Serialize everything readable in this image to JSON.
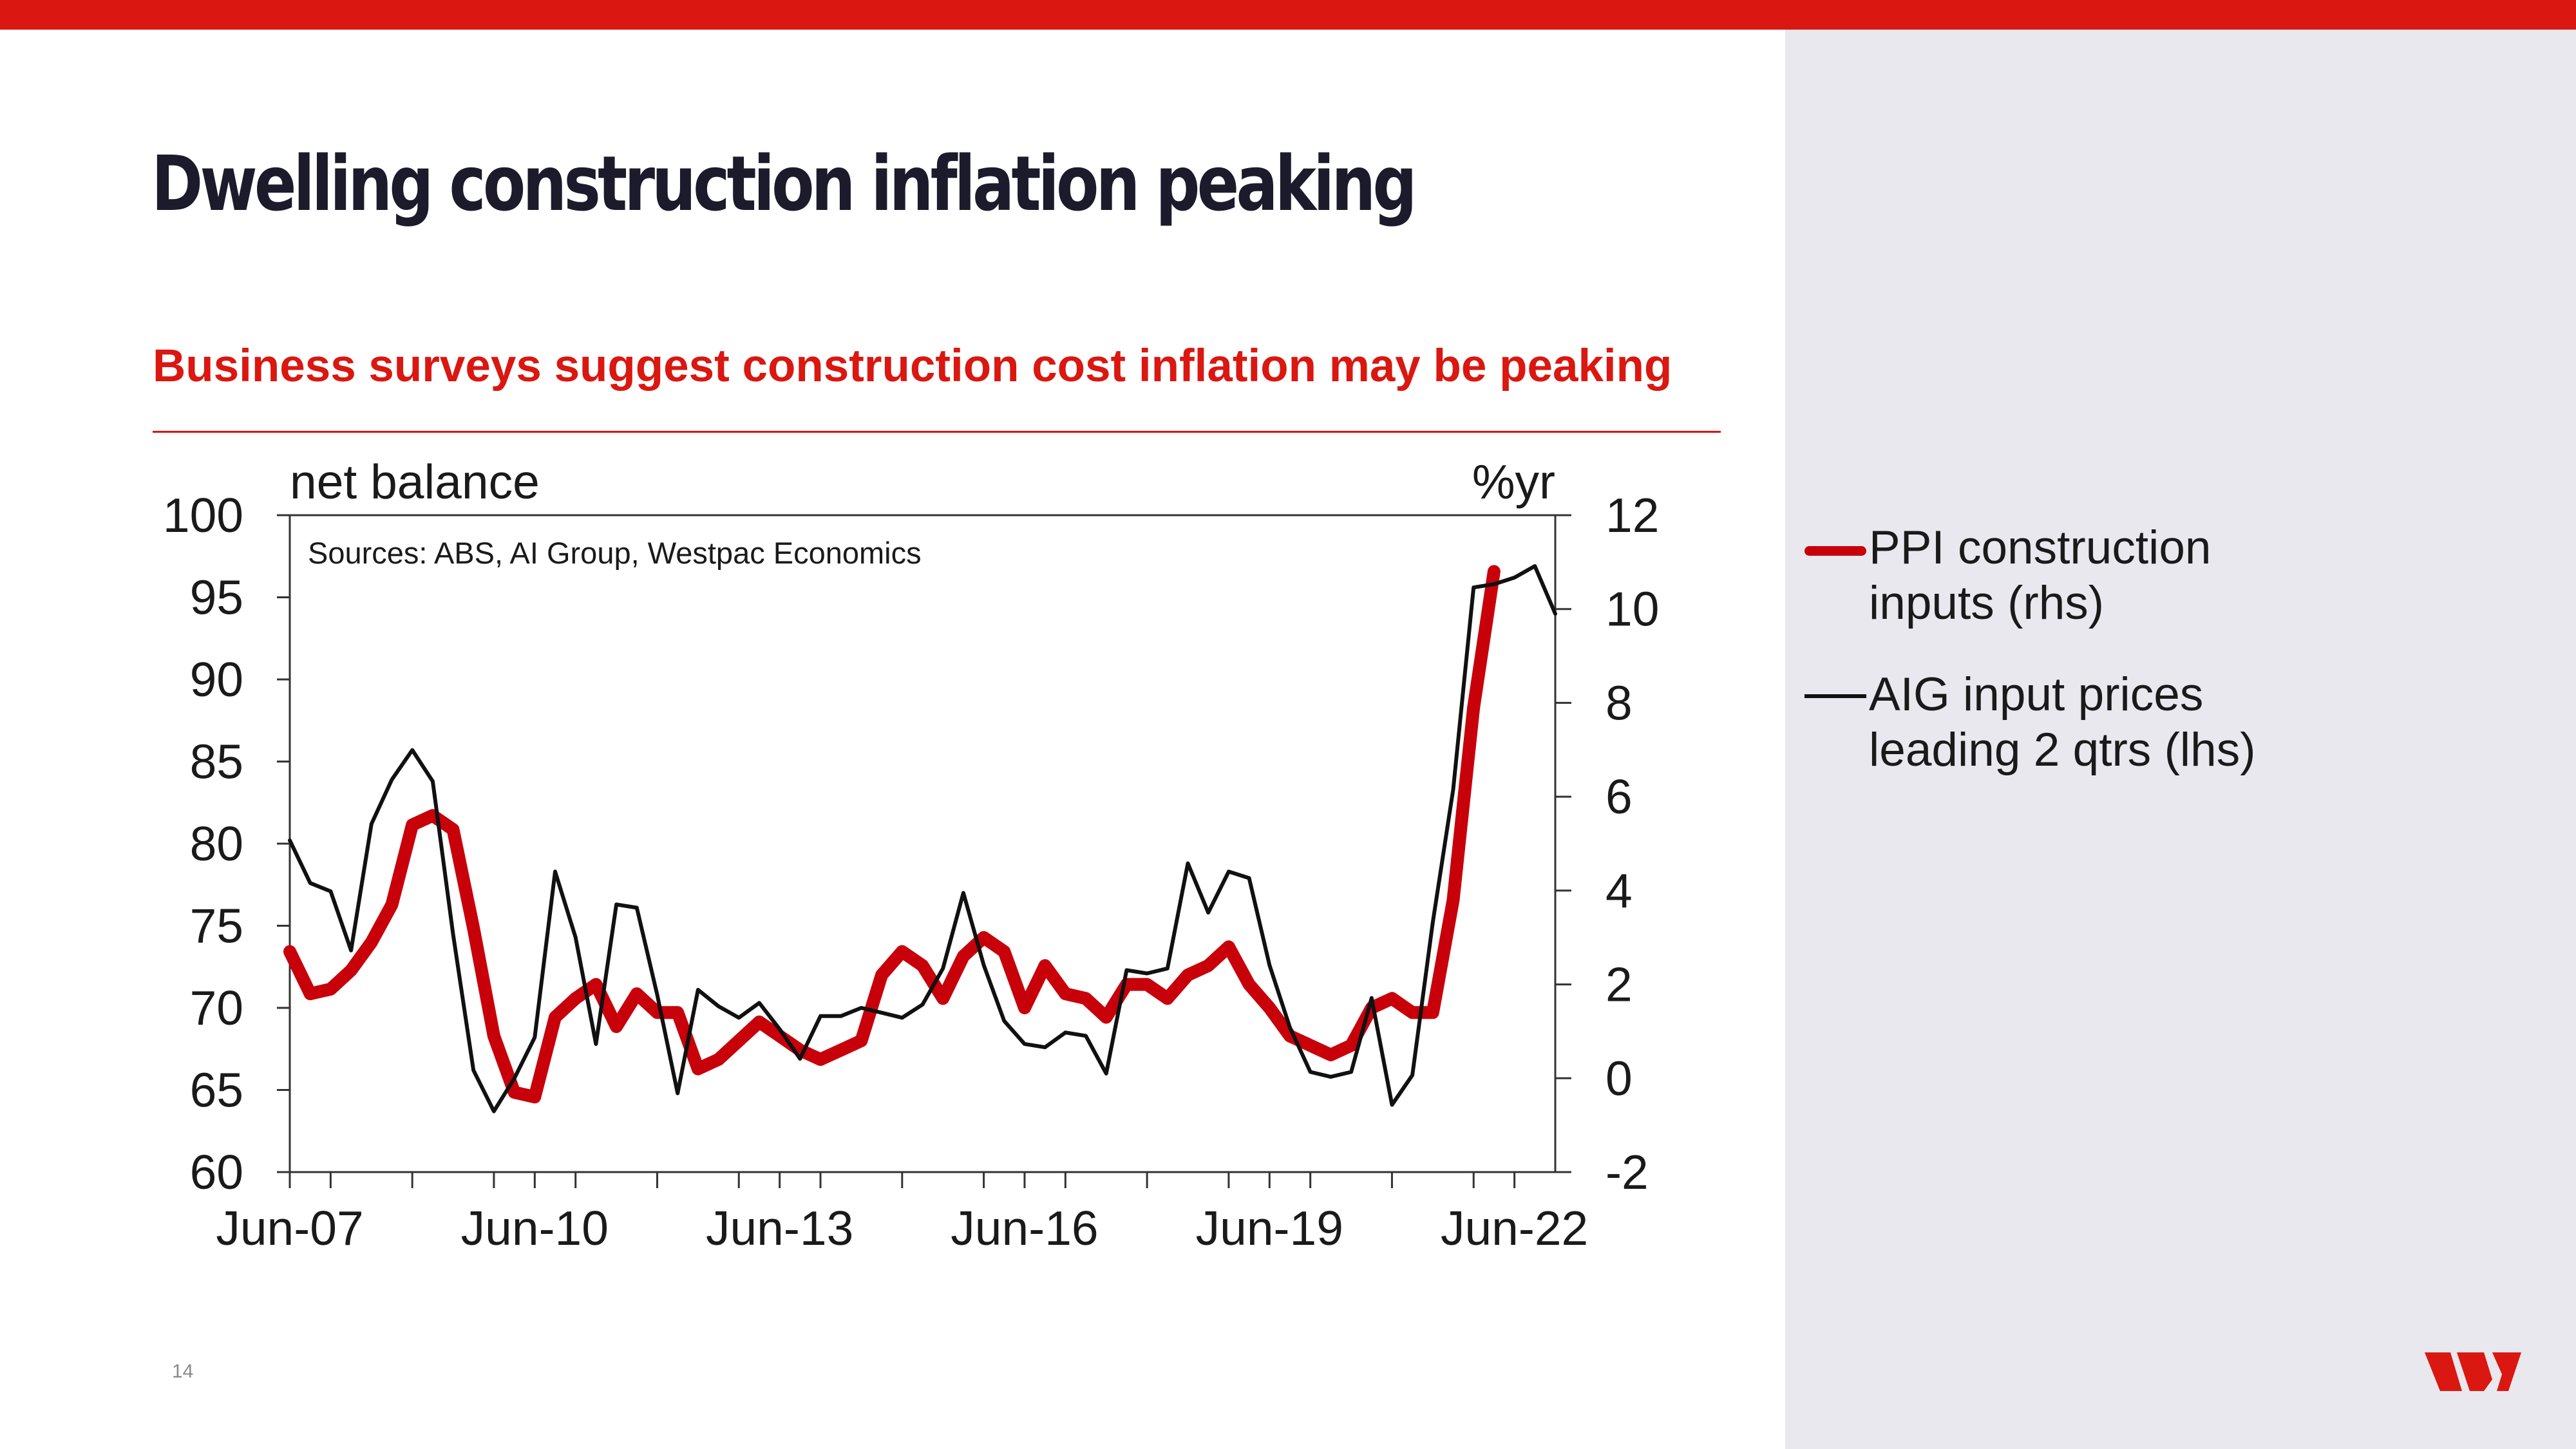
{
  "slide": {
    "title": "Dwelling construction inflation peaking",
    "subtitle": "Business surveys suggest construction cost inflation may be peaking",
    "page_number": "14"
  },
  "colors": {
    "accent_red": "#da1710",
    "title_dark": "#1b1b2b",
    "side_panel": "#e8e8ee",
    "series_red": "#c8000a",
    "series_black": "#111111"
  },
  "logo": {
    "icon": "westpac-w-logo"
  },
  "chart_data": {
    "type": "line",
    "source_note": "Sources: ABS, AI Group, Westpac Economics",
    "left_axis": {
      "unit_label": "net balance",
      "range": [
        60,
        100
      ],
      "ticks": [
        60,
        65,
        70,
        75,
        80,
        85,
        90,
        95,
        100
      ],
      "tick_labels": [
        "60",
        "65",
        "70",
        "75",
        "80",
        "85",
        "90",
        "95",
        "100"
      ]
    },
    "right_axis": {
      "unit_label": "%yr",
      "range": [
        -2,
        12
      ],
      "ticks": [
        -2,
        0,
        2,
        4,
        6,
        8,
        10,
        12
      ],
      "tick_labels": [
        "-2",
        "0",
        "2",
        "4",
        "6",
        "8",
        "10",
        "12"
      ]
    },
    "x_axis": {
      "range": [
        "Jun-07",
        "Dec-22"
      ],
      "tick_labels": [
        "Jun-07",
        "Jun-10",
        "Jun-13",
        "Jun-16",
        "Jun-19",
        "Jun-22"
      ]
    },
    "grid": false,
    "legend_position": "right",
    "series": [
      {
        "name": "PPI construction inputs (rhs)",
        "axis": "right",
        "color": "#c8000a",
        "points": [
          [
            "Jun-07",
            2.7
          ],
          [
            "Sep-07",
            1.8
          ],
          [
            "Dec-07",
            1.9
          ],
          [
            "Mar-08",
            2.3
          ],
          [
            "Jun-08",
            2.9
          ],
          [
            "Sep-08",
            3.7
          ],
          [
            "Dec-08",
            5.4
          ],
          [
            "Mar-09",
            5.6
          ],
          [
            "Jun-09",
            5.3
          ],
          [
            "Sep-09",
            3.2
          ],
          [
            "Dec-09",
            0.9
          ],
          [
            "Mar-10",
            -0.3
          ],
          [
            "Jun-10",
            -0.4
          ],
          [
            "Sep-10",
            1.3
          ],
          [
            "Dec-10",
            1.7
          ],
          [
            "Mar-11",
            2.0
          ],
          [
            "Jun-11",
            1.1
          ],
          [
            "Sep-11",
            1.8
          ],
          [
            "Dec-11",
            1.4
          ],
          [
            "Mar-12",
            1.4
          ],
          [
            "Jun-12",
            0.2
          ],
          [
            "Sep-12",
            0.4
          ],
          [
            "Dec-12",
            0.8
          ],
          [
            "Mar-13",
            1.2
          ],
          [
            "Jun-13",
            0.9
          ],
          [
            "Sep-13",
            0.6
          ],
          [
            "Dec-13",
            0.4
          ],
          [
            "Mar-14",
            0.6
          ],
          [
            "Jun-14",
            0.8
          ],
          [
            "Sep-14",
            2.2
          ],
          [
            "Dec-14",
            2.7
          ],
          [
            "Mar-15",
            2.4
          ],
          [
            "Jun-15",
            1.7
          ],
          [
            "Sep-15",
            2.6
          ],
          [
            "Dec-15",
            3.0
          ],
          [
            "Mar-16",
            2.7
          ],
          [
            "Jun-16",
            1.5
          ],
          [
            "Sep-16",
            2.4
          ],
          [
            "Dec-16",
            1.8
          ],
          [
            "Mar-17",
            1.7
          ],
          [
            "Jun-17",
            1.3
          ],
          [
            "Sep-17",
            2.0
          ],
          [
            "Dec-17",
            2.0
          ],
          [
            "Mar-18",
            1.7
          ],
          [
            "Jun-18",
            2.2
          ],
          [
            "Sep-18",
            2.4
          ],
          [
            "Dec-18",
            2.8
          ],
          [
            "Mar-19",
            2.0
          ],
          [
            "Jun-19",
            1.5
          ],
          [
            "Sep-19",
            0.9
          ],
          [
            "Dec-19",
            0.7
          ],
          [
            "Mar-20",
            0.5
          ],
          [
            "Jun-20",
            0.7
          ],
          [
            "Sep-20",
            1.5
          ],
          [
            "Dec-20",
            1.7
          ],
          [
            "Mar-21",
            1.4
          ],
          [
            "Jun-21",
            1.4
          ],
          [
            "Sep-21",
            3.8
          ],
          [
            "Dec-21",
            7.9
          ],
          [
            "Mar-22",
            10.8
          ]
        ]
      },
      {
        "name": "AIG input prices leading 2 qtrs (lhs)",
        "axis": "left",
        "color": "#111111",
        "points": [
          [
            "Jun-07",
            80.2
          ],
          [
            "Sep-07",
            77.6
          ],
          [
            "Dec-07",
            77.1
          ],
          [
            "Mar-08",
            73.5
          ],
          [
            "Jun-08",
            81.2
          ],
          [
            "Sep-08",
            83.9
          ],
          [
            "Dec-08",
            85.7
          ],
          [
            "Mar-09",
            83.8
          ],
          [
            "Jun-09",
            74.5
          ],
          [
            "Sep-09",
            66.2
          ],
          [
            "Dec-09",
            63.7
          ],
          [
            "Mar-10",
            65.7
          ],
          [
            "Jun-10",
            68.2
          ],
          [
            "Sep-10",
            78.3
          ],
          [
            "Dec-10",
            74.3
          ],
          [
            "Mar-11",
            67.8
          ],
          [
            "Jun-11",
            76.3
          ],
          [
            "Sep-11",
            76.1
          ],
          [
            "Dec-11",
            70.8
          ],
          [
            "Mar-12",
            64.8
          ],
          [
            "Jun-12",
            71.1
          ],
          [
            "Sep-12",
            70.1
          ],
          [
            "Dec-12",
            69.4
          ],
          [
            "Mar-13",
            70.3
          ],
          [
            "Jun-13",
            68.7
          ],
          [
            "Sep-13",
            66.9
          ],
          [
            "Dec-13",
            69.5
          ],
          [
            "Mar-14",
            69.5
          ],
          [
            "Jun-14",
            70.0
          ],
          [
            "Sep-14",
            69.7
          ],
          [
            "Dec-14",
            69.4
          ],
          [
            "Mar-15",
            70.2
          ],
          [
            "Jun-15",
            72.4
          ],
          [
            "Sep-15",
            77.0
          ],
          [
            "Dec-15",
            72.6
          ],
          [
            "Mar-16",
            69.2
          ],
          [
            "Jun-16",
            67.8
          ],
          [
            "Sep-16",
            67.6
          ],
          [
            "Dec-16",
            68.5
          ],
          [
            "Mar-17",
            68.3
          ],
          [
            "Jun-17",
            66.0
          ],
          [
            "Sep-17",
            72.3
          ],
          [
            "Dec-17",
            72.1
          ],
          [
            "Mar-18",
            72.4
          ],
          [
            "Jun-18",
            78.8
          ],
          [
            "Sep-18",
            75.8
          ],
          [
            "Dec-18",
            78.3
          ],
          [
            "Mar-19",
            77.9
          ],
          [
            "Jun-19",
            72.6
          ],
          [
            "Sep-19",
            68.8
          ],
          [
            "Dec-19",
            66.1
          ],
          [
            "Mar-20",
            65.8
          ],
          [
            "Jun-20",
            66.1
          ],
          [
            "Sep-20",
            70.6
          ],
          [
            "Dec-20",
            64.1
          ],
          [
            "Mar-21",
            65.9
          ],
          [
            "Jun-21",
            75.2
          ],
          [
            "Sep-21",
            83.3
          ],
          [
            "Dec-21",
            95.6
          ],
          [
            "Mar-22",
            95.8
          ],
          [
            "Jun-22",
            96.2
          ],
          [
            "Sep-22",
            96.9
          ],
          [
            "Dec-22",
            94.0
          ]
        ]
      }
    ]
  }
}
